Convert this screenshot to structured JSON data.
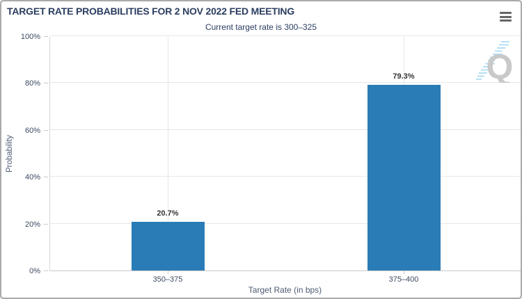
{
  "window": {
    "menu_icon": "hamburger-export-menu"
  },
  "chart_data": {
    "type": "bar",
    "title": "TARGET RATE PROBABILITIES FOR 2 NOV 2022 FED MEETING",
    "subtitle": "Current target rate is 300–325",
    "categories": [
      "350–375",
      "375–400"
    ],
    "values": [
      20.7,
      79.3
    ],
    "value_labels": [
      "20.7%",
      "79.3%"
    ],
    "xlabel": "Target Rate (in bps)",
    "ylabel": "Probability",
    "ylim": [
      0,
      100
    ],
    "yticks": [
      0,
      20,
      40,
      60,
      80,
      100
    ],
    "ytick_labels": [
      "0%",
      "20%",
      "40%",
      "60%",
      "80%",
      "100%"
    ],
    "grid": true,
    "legend": "none",
    "colors": {
      "bar": "#2a7cb7",
      "title_text": "#2b3d60",
      "tick_text": "#3c4960",
      "gridline": "#e6e6e6",
      "axis_line": "#c9c9c9",
      "watermark_gray": "#c9c9c9",
      "watermark_blue": "#b5e0f4"
    },
    "watermark_letter": "Q"
  }
}
